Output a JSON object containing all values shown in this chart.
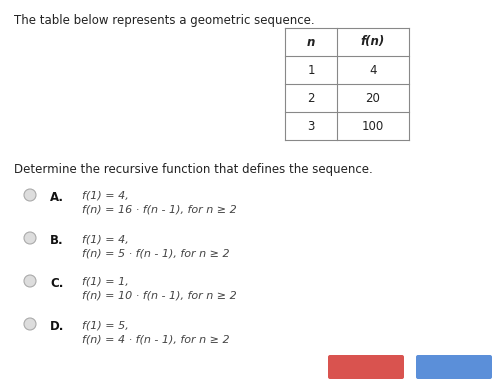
{
  "title_text": "The table below represents a geometric sequence.",
  "question_text": "Determine the recursive function that defines the sequence.",
  "table_headers": [
    "n",
    "f(n)"
  ],
  "table_rows": [
    [
      "1",
      "4"
    ],
    [
      "2",
      "20"
    ],
    [
      "3",
      "100"
    ]
  ],
  "options": [
    {
      "letter": "A.",
      "line1": "f(1) = 4,",
      "line2": "f(n) = 16 · f(n - 1), for n ≥ 2"
    },
    {
      "letter": "B.",
      "line1": "f(1) = 4,",
      "line2": "f(n) = 5 · f(n - 1), for n ≥ 2"
    },
    {
      "letter": "C.",
      "line1": "f(1) = 1,",
      "line2": "f(n) = 10 · f(n - 1), for n ≥ 2"
    },
    {
      "letter": "D.",
      "line1": "f(1) = 5,",
      "line2": "f(n) = 4 · f(n - 1), for n ≥ 2"
    }
  ],
  "bg_color": "#ffffff",
  "text_color": "#222222",
  "table_border_color": "#888888",
  "circle_edge_color": "#aaaaaa",
  "circle_fill_color": "#dddddd",
  "option_letter_color": "#111111",
  "option_text_color": "#444444",
  "title_fontsize": 8.5,
  "question_fontsize": 8.5,
  "option_letter_fontsize": 8.5,
  "option_text_fontsize": 8.0,
  "table_header_fontsize": 8.5,
  "table_data_fontsize": 8.5,
  "red_btn_color": "#d9534f",
  "blue_btn_color": "#5b8fd9"
}
